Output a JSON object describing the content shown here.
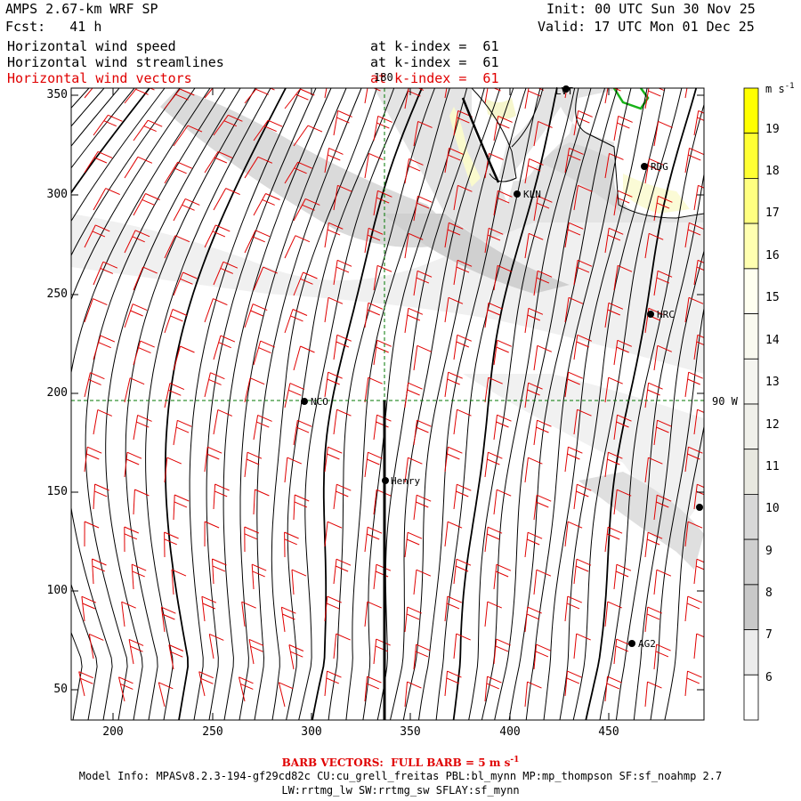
{
  "header": {
    "model": "AMPS 2.67-km WRF SP",
    "fcst": "Fcst:   41 h",
    "init": "Init: 00 UTC Sun 30 Nov 25",
    "valid": "Valid: 17 UTC Mon 01 Dec 25"
  },
  "fields": [
    {
      "name": "Horizontal wind speed",
      "level": "at k-index =  61",
      "color": "#000000"
    },
    {
      "name": "Horizontal wind streamlines",
      "level": "at k-index =  61",
      "color": "#000000"
    },
    {
      "name": "Horizontal wind vectors",
      "level": "at k-index =  61",
      "color": "#e00000"
    }
  ],
  "axes": {
    "x_ticks": [
      "200",
      "250",
      "300",
      "350",
      "400",
      "450"
    ],
    "y_ticks": [
      "350",
      "300",
      "250",
      "200",
      "150",
      "100",
      "50"
    ],
    "meridian_label": "180",
    "parallel_label": "90 W"
  },
  "stations": [
    "LVT",
    "RDG",
    "KLN",
    "HRC",
    "NCO",
    "Henry",
    "AG2"
  ],
  "colorbar": {
    "unit": "m s",
    "unit_exp": "-1",
    "labels": [
      "19",
      "18",
      "17",
      "16",
      "15",
      "14",
      "13",
      "12",
      "11",
      "10",
      "9",
      "8",
      "7",
      "6"
    ],
    "colors": [
      "#ffff00",
      "#ffff33",
      "#ffff80",
      "#ffffb0",
      "#fffff0",
      "#fafaf0",
      "#f5f5f0",
      "#f0f0ea",
      "#e8e8e0",
      "#d8d8d8",
      "#cfcfcf",
      "#c8c8c8",
      "#ececec",
      "#ffffff"
    ]
  },
  "footer": {
    "barb_note": "BARB VECTORS:  FULL BARB = 5 m s",
    "barb_exp": "-1",
    "model_info": "Model Info: MPASv8.2.3-194-gf29cd82c CU:cu_grell_freitas PBL:bl_mynn MP:mp_thompson SF:sf_noahmp 2.7",
    "model_info2": "LW:rrtmg_lw SW:rrtmg_sw SFLAY:sf_mynn"
  }
}
